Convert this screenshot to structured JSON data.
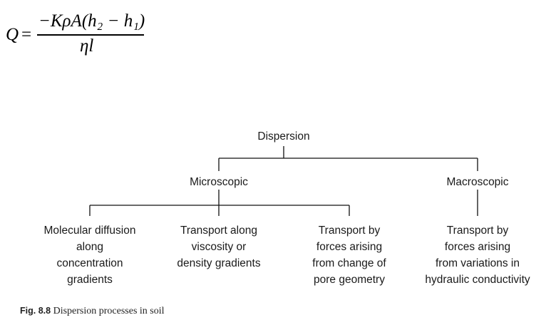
{
  "formula": {
    "lhs": "Q",
    "equals": "=",
    "numerator": "−KρA(h₂ − h₁)",
    "denominator": "ηl"
  },
  "diagram": {
    "root": "Dispersion",
    "microscopic": "Microscopic",
    "macroscopic": "Macroscopic",
    "leaves": [
      "Molecular diffusion\nalong\nconcentration\ngradients",
      "Transport along\nviscosity or\ndensity gradients",
      "Transport by\nforces arising\nfrom change of\npore geometry",
      "Transport by\nforces arising\nfrom variations in\nhydraulic conductivity"
    ]
  },
  "caption": {
    "label": "Fig. 8.8",
    "text": "Dispersion processes in soil"
  }
}
